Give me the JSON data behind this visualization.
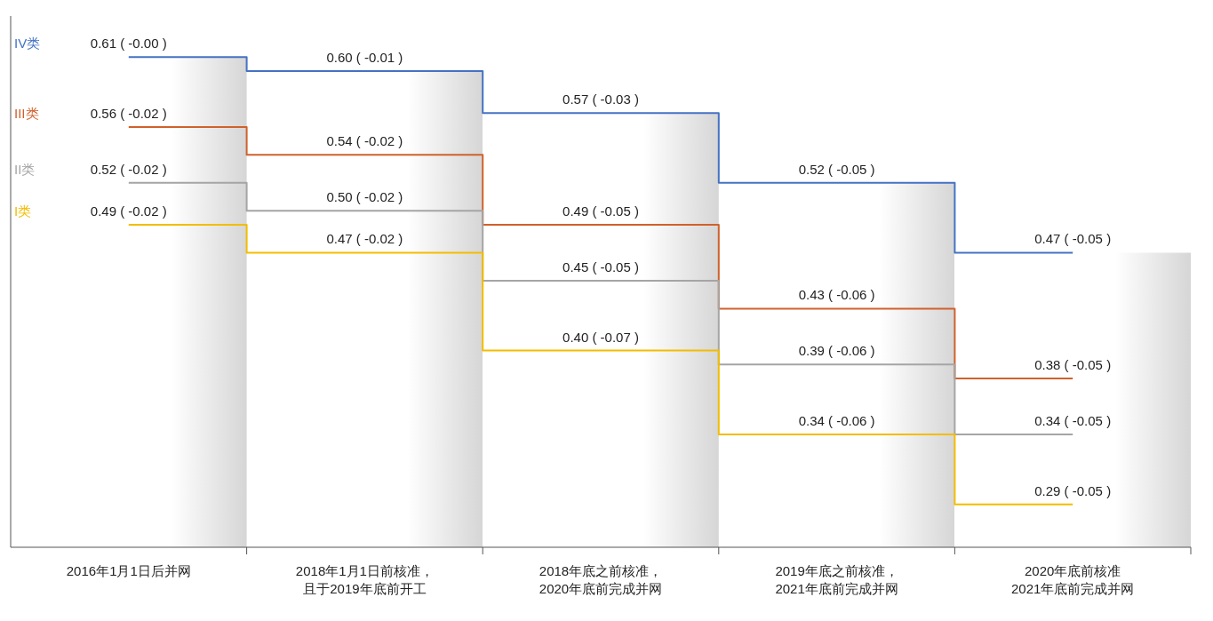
{
  "chart_data": {
    "type": "step",
    "categories": [
      "2016年1月1日后并网",
      "2018年1月1日前核准，且于2019年底前开工",
      "2018年底之前核准，2020年底前完成并网",
      "2019年底之前核准，2021年底前完成并网",
      "2020年底前核准2021年底前完成并网"
    ],
    "series": [
      {
        "name": "IV类",
        "color": "#4472c4",
        "values": [
          0.61,
          0.6,
          0.57,
          0.52,
          0.47
        ],
        "value_labels": [
          "0.61 ( -0.00 )",
          "0.60 ( -0.01 )",
          "0.57 ( -0.03 )",
          "0.52 ( -0.05 )",
          "0.47 ( -0.05 )"
        ]
      },
      {
        "name": "III类",
        "color": "#d0612b",
        "values": [
          0.56,
          0.54,
          0.49,
          0.43,
          0.38
        ],
        "value_labels": [
          "0.56 ( -0.02 )",
          "0.54 ( -0.02 )",
          "0.49 ( -0.05 )",
          "0.43 ( -0.06 )",
          "0.38 ( -0.05 )"
        ]
      },
      {
        "name": "II类",
        "color": "#a5a5a5",
        "values": [
          0.52,
          0.5,
          0.45,
          0.39,
          0.34
        ],
        "value_labels": [
          "0.52 ( -0.02 )",
          "0.50 ( -0.02 )",
          "0.45 ( -0.05 )",
          "0.39 ( -0.06 )",
          "0.34 ( -0.05 )"
        ]
      },
      {
        "name": "I类",
        "color": "#f2bd00",
        "values": [
          0.49,
          0.47,
          0.4,
          0.34,
          0.29
        ],
        "value_labels": [
          "0.49 ( -0.02 )",
          "0.47 ( -0.02 )",
          "0.40 ( -0.07 )",
          "0.34 ( -0.06 )",
          "0.29 ( -0.05 )"
        ]
      }
    ]
  }
}
